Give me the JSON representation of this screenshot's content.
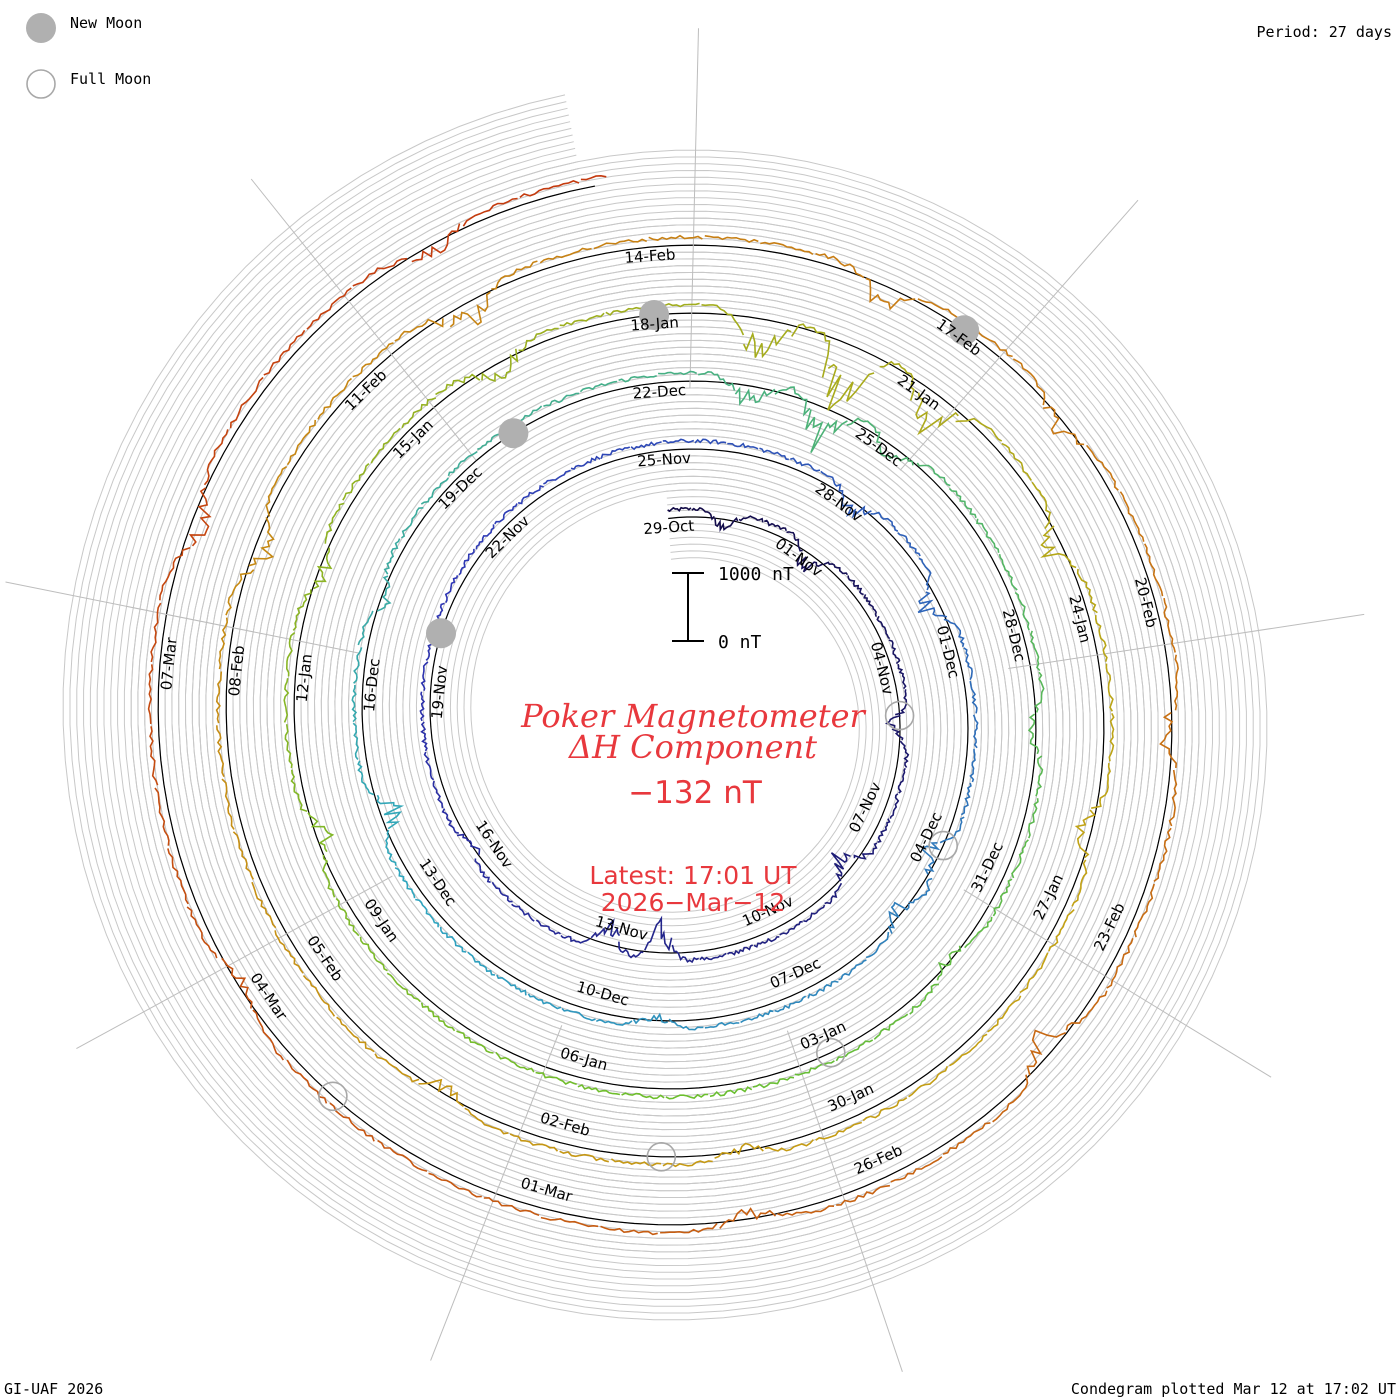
{
  "title_line1": "Poker Magnetometer",
  "title_line2": "ΔH Component",
  "current_value": "−132 nT",
  "latest_label": "Latest: 17:01 UT",
  "latest_date": "2026−Mar−12",
  "period_label": "Period: 27 days",
  "credit": "GI-UAF 2026",
  "plotted_label": "Condegram plotted Mar 12 at 17:02 UT",
  "legend": {
    "new_moon": "New Moon",
    "full_moon": "Full Moon"
  },
  "scale_bar": {
    "top_label": "1000 nT",
    "bottom_label": "0 nT",
    "range_nT": [
      0,
      1000
    ]
  },
  "colors": {
    "title": "#e8383d",
    "grid": "#c8c8c8",
    "baseline": "#000000",
    "moon": "#b0b0b0"
  },
  "chart_data": {
    "type": "line",
    "subtype": "condegram (27-day spiral)",
    "period_days": 27,
    "units": "nT",
    "start_date": "2025-10-29",
    "end_date": "2026-03-12",
    "tick_labels": [
      "29-Oct",
      "01-Nov",
      "04-Nov",
      "07-Nov",
      "10-Nov",
      "13-Nov",
      "16-Nov",
      "19-Nov",
      "22-Nov",
      "25-Nov",
      "28-Nov",
      "01-Dec",
      "04-Dec",
      "07-Dec",
      "10-Dec",
      "13-Dec",
      "16-Dec",
      "19-Dec",
      "22-Dec",
      "25-Dec",
      "28-Dec",
      "31-Dec",
      "03-Jan",
      "06-Jan",
      "09-Jan",
      "12-Jan",
      "15-Jan",
      "18-Jan",
      "21-Jan",
      "24-Jan",
      "27-Jan",
      "30-Jan",
      "02-Feb",
      "05-Feb",
      "08-Feb",
      "11-Feb",
      "14-Feb",
      "17-Feb",
      "20-Feb",
      "23-Feb",
      "26-Feb",
      "01-Mar",
      "04-Mar",
      "07-Mar"
    ],
    "ring_colors": [
      "#120a46",
      "#2e35b4",
      "#2fa6bf",
      "#6bbf2e",
      "#c4a214",
      "#c87814",
      "#c4380e"
    ],
    "new_moons": [
      "2025-11-20",
      "2025-12-20",
      "2026-01-18",
      "2026-02-17"
    ],
    "full_moons": [
      "2025-11-05",
      "2025-12-04",
      "2026-01-03",
      "2026-02-01",
      "2026-03-03"
    ],
    "series": [
      {
        "rotation": 1,
        "from": "2025-10-29",
        "to": "2025-11-25",
        "disturbances": [
          {
            "date": "2025-10-30",
            "dip_nT": -300
          },
          {
            "date": "2025-11-01",
            "dip_nT": -450
          },
          {
            "date": "2025-11-05",
            "dip_nT": -350
          },
          {
            "date": "2025-11-08",
            "dip_nT": -500
          },
          {
            "date": "2025-11-12",
            "dip_nT": -650
          },
          {
            "date": "2025-11-13",
            "dip_nT": -500
          },
          {
            "date": "2025-11-16",
            "dip_nT": -250
          }
        ]
      },
      {
        "rotation": 2,
        "from": "2025-11-25",
        "to": "2025-12-22",
        "disturbances": [
          {
            "date": "2025-11-28",
            "dip_nT": -350
          },
          {
            "date": "2025-11-30",
            "dip_nT": -500
          },
          {
            "date": "2025-12-04",
            "dip_nT": -400
          },
          {
            "date": "2025-12-05",
            "dip_nT": -300
          },
          {
            "date": "2025-12-09",
            "dip_nT": -250
          },
          {
            "date": "2025-12-14",
            "dip_nT": -450
          },
          {
            "date": "2025-12-17",
            "dip_nT": -250
          }
        ]
      },
      {
        "rotation": 3,
        "from": "2025-12-22",
        "to": "2026-01-18",
        "disturbances": [
          {
            "date": "2025-12-23",
            "dip_nT": -500
          },
          {
            "date": "2025-12-24",
            "dip_nT": -800
          },
          {
            "date": "2025-12-25",
            "dip_nT": -450
          },
          {
            "date": "2025-12-29",
            "dip_nT": -300
          },
          {
            "date": "2026-01-01",
            "dip_nT": -250
          },
          {
            "date": "2026-01-10",
            "dip_nT": -350
          },
          {
            "date": "2026-01-13",
            "dip_nT": -300
          },
          {
            "date": "2026-01-16",
            "dip_nT": -400
          }
        ]
      },
      {
        "rotation": 4,
        "from": "2026-01-18",
        "to": "2026-02-14",
        "disturbances": [
          {
            "date": "2026-01-19",
            "dip_nT": -1000
          },
          {
            "date": "2026-01-20",
            "dip_nT": -1300
          },
          {
            "date": "2026-01-21",
            "dip_nT": -900
          },
          {
            "date": "2026-01-23",
            "dip_nT": -450
          },
          {
            "date": "2026-01-26",
            "dip_nT": -350
          },
          {
            "date": "2026-01-31",
            "dip_nT": -250
          },
          {
            "date": "2026-02-03",
            "dip_nT": -300
          },
          {
            "date": "2026-02-09",
            "dip_nT": -400
          },
          {
            "date": "2026-02-12",
            "dip_nT": -500
          }
        ]
      },
      {
        "rotation": 5,
        "from": "2026-02-14",
        "to": "2026-03-13",
        "disturbances": [
          {
            "date": "2026-02-16",
            "dip_nT": -450
          },
          {
            "date": "2026-02-18",
            "dip_nT": -350
          },
          {
            "date": "2026-02-21",
            "dip_nT": -300
          },
          {
            "date": "2026-02-24",
            "dip_nT": -500
          },
          {
            "date": "2026-02-27",
            "dip_nT": -300
          },
          {
            "date": "2026-03-04",
            "dip_nT": -250
          },
          {
            "date": "2026-03-08",
            "dip_nT": -450
          },
          {
            "date": "2026-03-11",
            "dip_nT": -300
          }
        ]
      }
    ]
  }
}
